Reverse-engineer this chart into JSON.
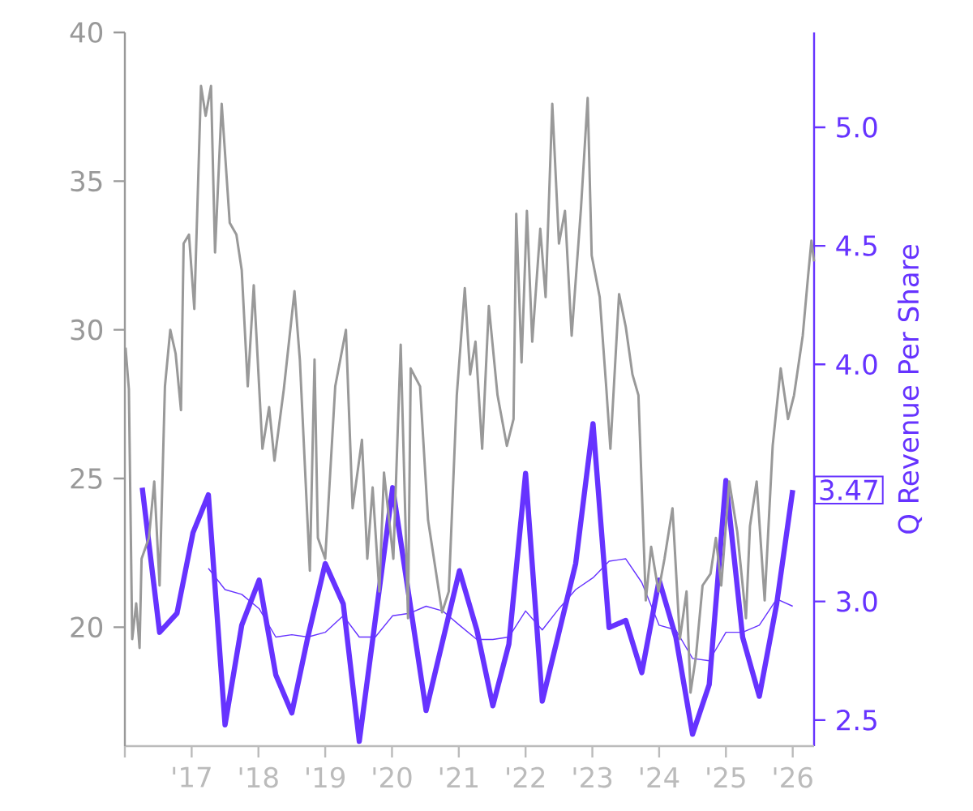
{
  "chart_data": {
    "type": "line",
    "y2label": "Q Revenue Per Share",
    "xlim": [
      2016,
      2026.32
    ],
    "xticks": [
      {
        "value": 2016,
        "label": null
      },
      {
        "value": 2017,
        "label": "'17"
      },
      {
        "value": 2018,
        "label": "'18"
      },
      {
        "value": 2019,
        "label": "'19"
      },
      {
        "value": 2020,
        "label": "'20"
      },
      {
        "value": 2021,
        "label": "'21"
      },
      {
        "value": 2022,
        "label": "'22"
      },
      {
        "value": 2023,
        "label": "'23"
      },
      {
        "value": 2024,
        "label": "'24"
      },
      {
        "value": 2025,
        "label": "'25"
      },
      {
        "value": 2026,
        "label": "'26"
      }
    ],
    "ylim": [
      16,
      40
    ],
    "yticks": [
      20,
      25,
      30,
      35,
      40
    ],
    "y2lim": [
      2.39,
      5.4
    ],
    "y2ticks": [
      {
        "value": 2.5,
        "label": "2.5"
      },
      {
        "value": 3,
        "label": "3.0"
      },
      {
        "value": 3.5,
        "label": null
      },
      {
        "value": 4,
        "label": "4.0"
      },
      {
        "value": 4.5,
        "label": "4.5"
      },
      {
        "value": 5,
        "label": "5.0"
      }
    ],
    "series": [
      {
        "color": "#999999",
        "x": [
          2016.01,
          2016.06,
          2016.11,
          2016.17,
          2016.22,
          2016.25,
          2016.36,
          2016.44,
          2016.52,
          2016.6,
          2016.68,
          2016.76,
          2016.84,
          2016.88,
          2016.96,
          2017.04,
          2017.14,
          2017.21,
          2017.29,
          2017.35,
          2017.45,
          2017.57,
          2017.67,
          2017.75,
          2017.84,
          2017.93,
          2018.06,
          2018.16,
          2018.24,
          2018.38,
          2018.54,
          2018.62,
          2018.77,
          2018.84,
          2018.89,
          2019.0,
          2019.15,
          2019.31,
          2019.41,
          2019.55,
          2019.63,
          2019.71,
          2019.81,
          2019.88,
          2020.02,
          2020.13,
          2020.24,
          2020.28,
          2020.42,
          2020.54,
          2020.75,
          2020.85,
          2020.97,
          2021.09,
          2021.17,
          2021.25,
          2021.35,
          2021.45,
          2021.58,
          2021.72,
          2021.82,
          2021.86,
          2021.94,
          2022.02,
          2022.1,
          2022.22,
          2022.3,
          2022.4,
          2022.5,
          2022.59,
          2022.69,
          2022.83,
          2022.93,
          2022.99,
          2023.11,
          2023.21,
          2023.27,
          2023.4,
          2023.5,
          2023.6,
          2023.69,
          2023.8,
          2023.88,
          2023.99,
          2024.08,
          2024.2,
          2024.31,
          2024.41,
          2024.47,
          2024.55,
          2024.65,
          2024.77,
          2024.85,
          2024.93,
          2025.05,
          2025.17,
          2025.3,
          2025.36,
          2025.46,
          2025.58,
          2025.7,
          2025.82,
          2025.93,
          2026.02,
          2026.15,
          2026.23,
          2026.28,
          2026.32
        ],
        "values": [
          29.4,
          28.0,
          19.6,
          20.8,
          19.3,
          22.3,
          23.0,
          24.9,
          21.4,
          28.1,
          30.0,
          29.2,
          27.3,
          32.9,
          33.2,
          30.7,
          38.2,
          37.2,
          38.2,
          32.6,
          37.6,
          33.6,
          33.2,
          32.0,
          28.1,
          31.5,
          26.0,
          27.4,
          25.6,
          28.0,
          31.3,
          29.0,
          21.9,
          29.0,
          23.0,
          22.3,
          28.1,
          30.0,
          24.0,
          26.3,
          22.3,
          24.7,
          21.2,
          25.2,
          22.3,
          29.5,
          20.3,
          28.7,
          28.1,
          23.6,
          20.5,
          21.2,
          27.8,
          31.4,
          28.5,
          29.6,
          26.0,
          30.8,
          27.8,
          26.1,
          27.0,
          33.9,
          28.9,
          34.0,
          29.6,
          33.4,
          31.1,
          37.6,
          32.9,
          34.0,
          29.8,
          34.1,
          37.8,
          32.5,
          31.1,
          28.0,
          26.0,
          31.2,
          30.1,
          28.5,
          27.8,
          20.9,
          22.7,
          21.2,
          22.3,
          24.0,
          19.6,
          21.2,
          17.8,
          19.0,
          21.4,
          21.8,
          23.0,
          21.4,
          24.9,
          23.2,
          20.3,
          23.4,
          24.9,
          20.9,
          26.1,
          28.7,
          27.0,
          27.8,
          29.8,
          31.8,
          33.0,
          32.3
        ]
      },
      {
        "color": "#6633ff",
        "axis": "y2",
        "x": [
          2016.26,
          2016.52,
          2016.78,
          2017.02,
          2017.25,
          2017.5,
          2017.75,
          2018.01,
          2018.26,
          2018.5,
          2018.74,
          2019.0,
          2019.27,
          2019.51,
          2020.01,
          2020.51,
          2021.01,
          2021.27,
          2021.51,
          2021.75,
          2022.0,
          2022.25,
          2022.5,
          2022.75,
          2023.01,
          2023.25,
          2023.5,
          2023.74,
          2024.0,
          2024.25,
          2024.5,
          2024.75,
          2025.0,
          2025.25,
          2025.5,
          2025.76,
          2026.0
        ],
        "values": [
          3.48,
          2.87,
          2.95,
          3.29,
          3.45,
          2.48,
          2.9,
          3.09,
          2.69,
          2.53,
          2.85,
          3.16,
          2.99,
          2.41,
          3.48,
          2.54,
          3.13,
          2.88,
          2.56,
          2.82,
          3.54,
          2.58,
          2.87,
          3.16,
          3.75,
          2.89,
          2.92,
          2.7,
          3.09,
          2.85,
          2.44,
          2.65,
          3.51,
          2.85,
          2.6,
          2.99,
          3.47
        ],
        "value_labels": [
          null,
          null,
          null,
          null,
          null,
          null,
          null,
          null,
          null,
          null,
          null,
          null,
          null,
          null,
          null,
          null,
          null,
          null,
          null,
          null,
          null,
          null,
          null,
          null,
          null,
          null,
          null,
          null,
          null,
          null,
          null,
          null,
          null,
          null,
          null,
          null,
          "3.47"
        ]
      },
      {
        "color": "#6633ff",
        "axis": "y2",
        "x": [
          2017.25,
          2017.5,
          2017.75,
          2018.01,
          2018.26,
          2018.5,
          2018.74,
          2019.0,
          2019.27,
          2019.51,
          2019.75,
          2020.01,
          2020.26,
          2020.51,
          2020.76,
          2021.01,
          2021.27,
          2021.51,
          2021.75,
          2022.0,
          2022.25,
          2022.5,
          2022.75,
          2023.01,
          2023.25,
          2023.5,
          2023.74,
          2024.0,
          2024.25,
          2024.5,
          2024.75,
          2025.0,
          2025.25,
          2025.5,
          2025.76,
          2026.0
        ],
        "values": [
          3.14,
          3.05,
          3.03,
          2.97,
          2.85,
          2.86,
          2.85,
          2.87,
          2.94,
          2.85,
          2.85,
          2.94,
          2.95,
          2.98,
          2.96,
          2.9,
          2.84,
          2.84,
          2.85,
          2.96,
          2.88,
          2.97,
          3.05,
          3.1,
          3.17,
          3.18,
          3.08,
          2.9,
          2.88,
          2.76,
          2.75,
          2.87,
          2.87,
          2.9,
          3.01,
          2.98
        ]
      }
    ]
  }
}
